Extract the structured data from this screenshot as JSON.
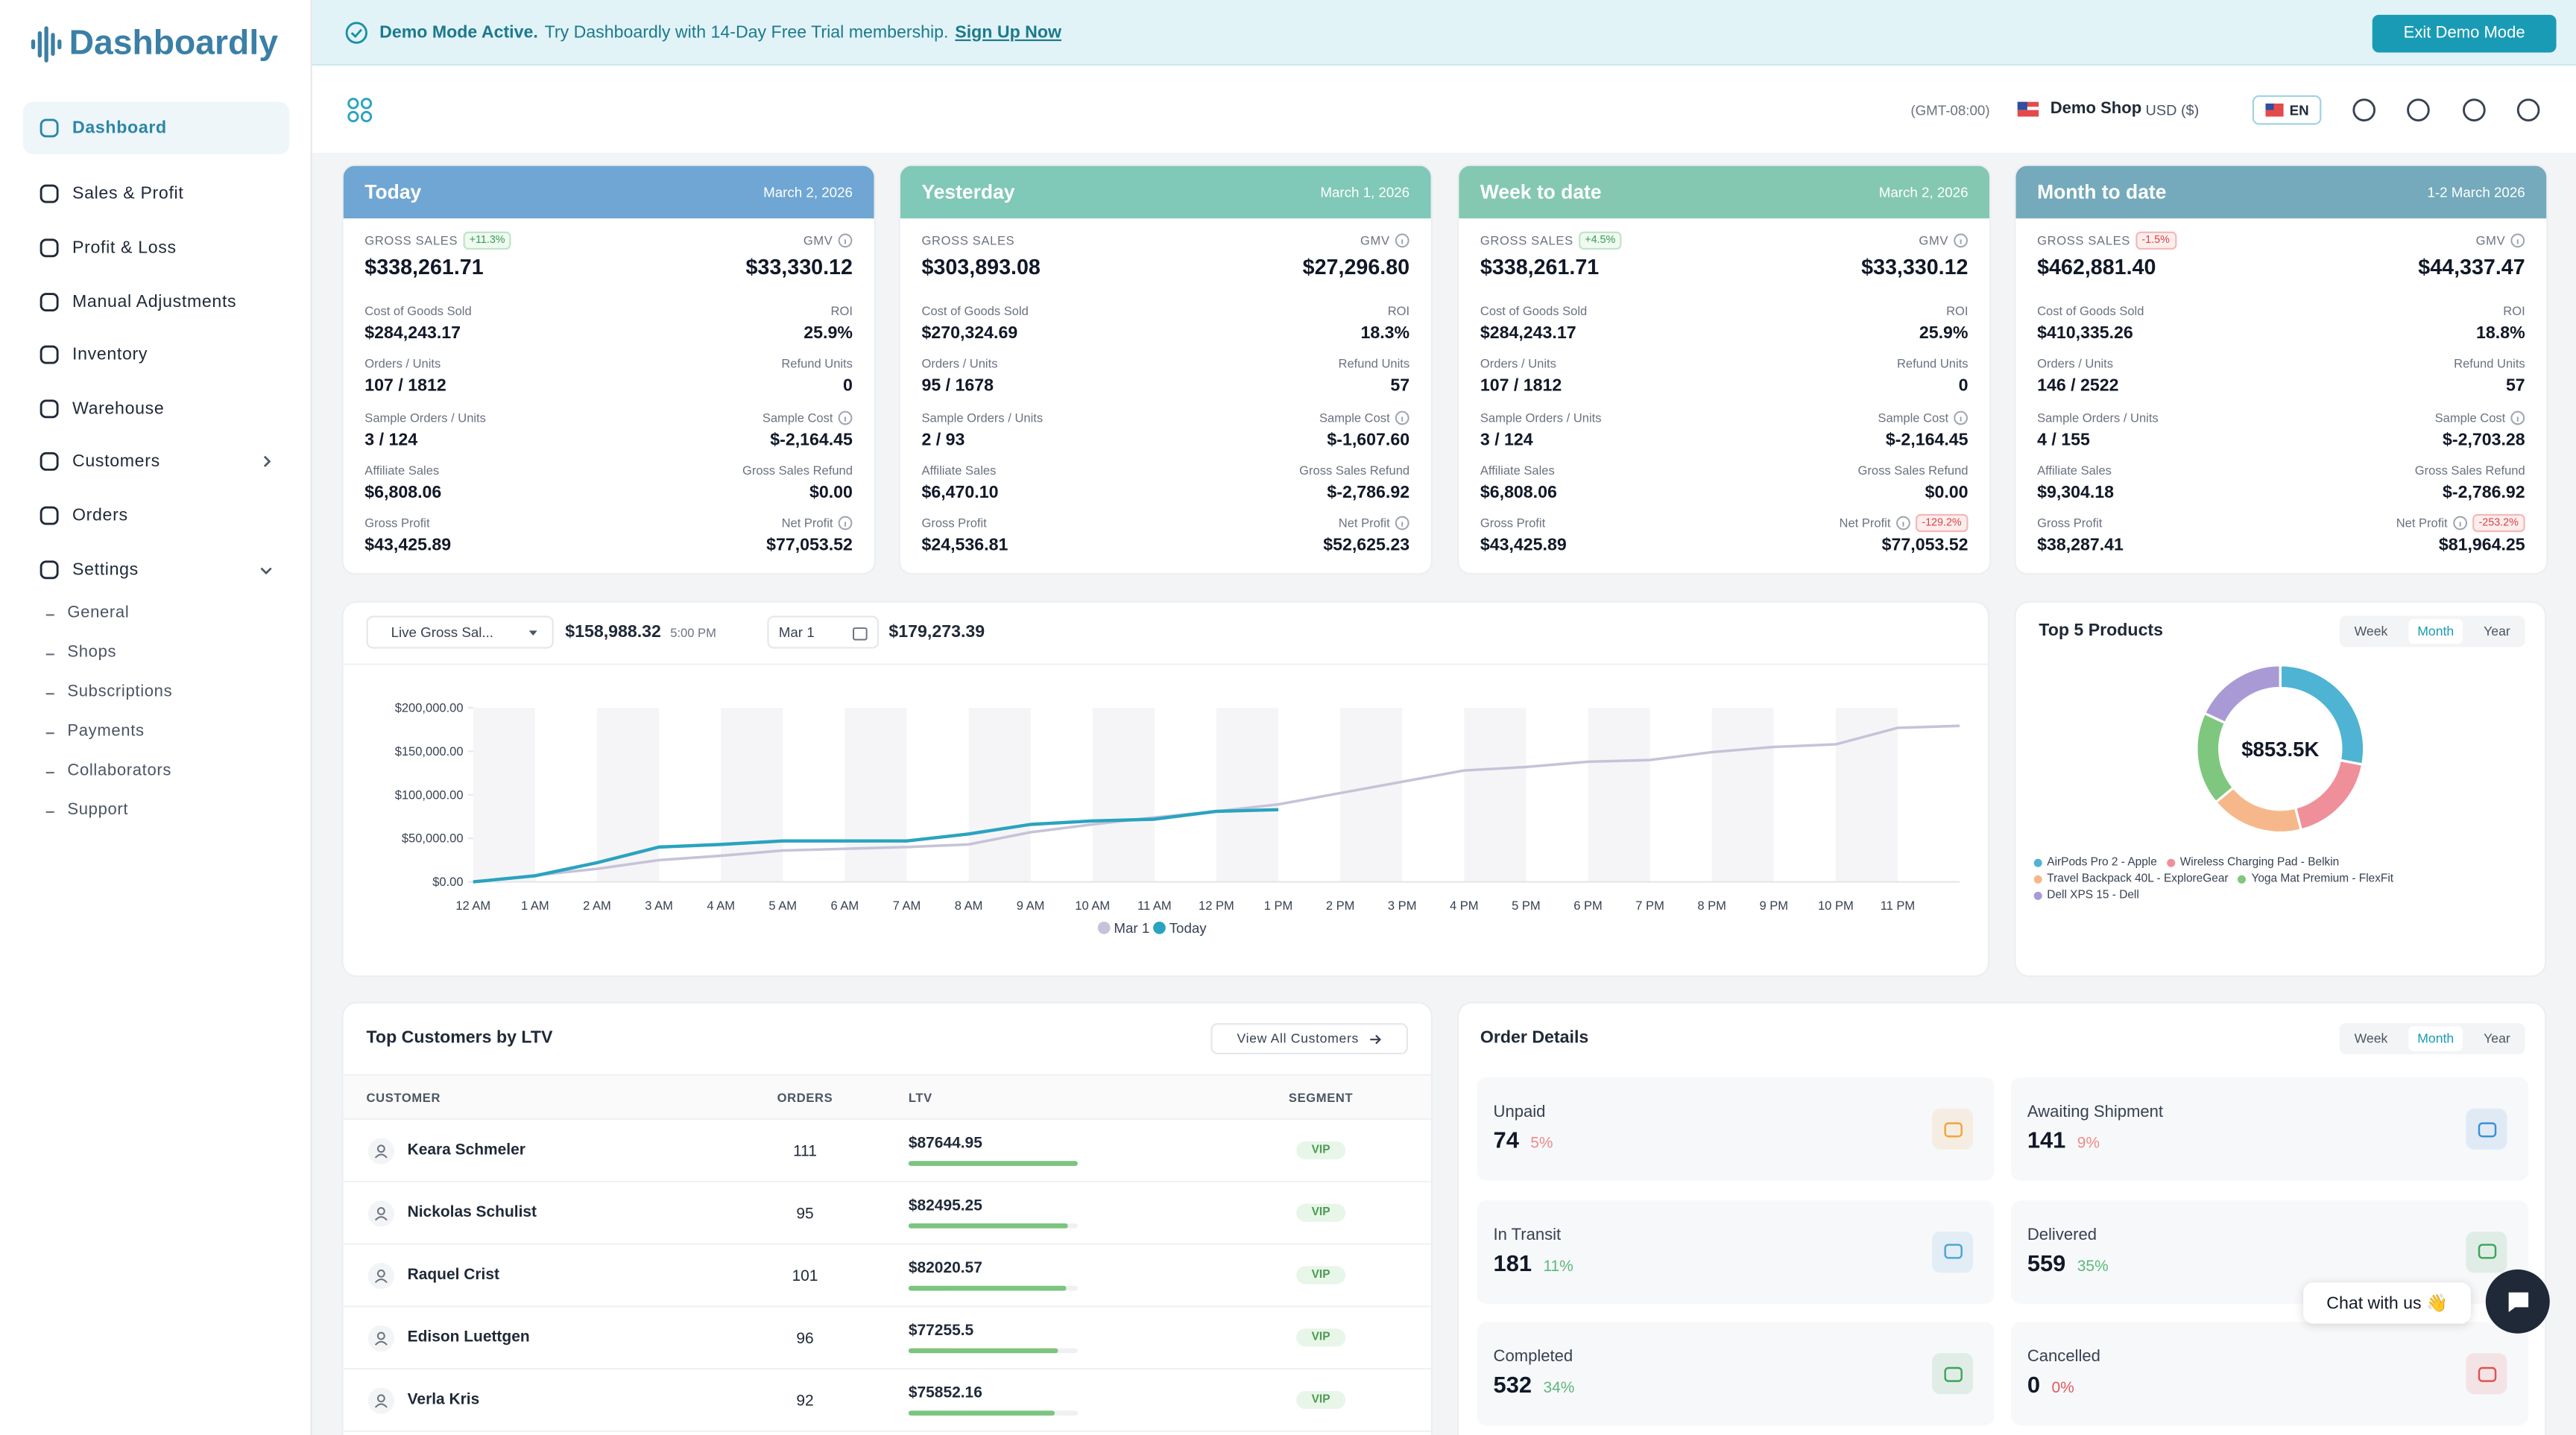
{
  "banner": {
    "status": "Demo Mode Active.",
    "message": "Try Dashboardly with 14-Day Free Trial membership.",
    "link": "Sign Up Now",
    "button": "Exit Demo Mode"
  },
  "sidebar": {
    "logo": "Dashboardly",
    "nav": [
      "Dashboard",
      "Sales & Profit",
      "Profit & Loss",
      "Manual Adjustments",
      "Inventory",
      "Warehouse",
      "Customers",
      "Orders",
      "Settings"
    ],
    "settings_sub": [
      "General",
      "Shops",
      "Subscriptions",
      "Payments",
      "Collaborators",
      "Support"
    ]
  },
  "header": {
    "timezone": "(GMT-08:00)",
    "shop": "Demo Shop",
    "currency": "USD ($)",
    "language": "EN"
  },
  "summary": {
    "labels_left": [
      "GROSS SALES",
      "Cost of Goods Sold",
      "Orders / Units",
      "Sample Orders / Units",
      "Affiliate Sales",
      "Gross Profit"
    ],
    "labels_right": [
      "GMV",
      "ROI",
      "Refund Units",
      "Sample Cost",
      "Gross Sales Refund",
      "Net Profit"
    ],
    "cards": [
      {
        "title": "Today",
        "date": "March 2, 2026",
        "color": "#6fa6d3",
        "gross_badge": "+11.3%",
        "left": [
          "$338,261.71",
          "$284,243.17",
          "107 / 1812",
          "3 / 124",
          "$6,808.06",
          "$43,425.89"
        ],
        "right": [
          "$33,330.12",
          "25.9%",
          "0",
          "$-2,164.45",
          "$0.00",
          "$77,053.52"
        ]
      },
      {
        "title": "Yesterday",
        "date": "March 1, 2026",
        "color": "#80c8b7",
        "left": [
          "$303,893.08",
          "$270,324.69",
          "95 / 1678",
          "2 / 93",
          "$6,470.10",
          "$24,536.81"
        ],
        "right": [
          "$27,296.80",
          "18.3%",
          "57",
          "$-1,607.60",
          "$-2,786.92",
          "$52,625.23"
        ]
      },
      {
        "title": "Week to date",
        "date": "March 2, 2026",
        "color": "#84c8b2",
        "gross_badge": "+4.5%",
        "net_badge": "-129.2%",
        "left": [
          "$338,261.71",
          "$284,243.17",
          "107 / 1812",
          "3 / 124",
          "$6,808.06",
          "$43,425.89"
        ],
        "right": [
          "$33,330.12",
          "25.9%",
          "0",
          "$-2,164.45",
          "$0.00",
          "$77,053.52"
        ]
      },
      {
        "title": "Month to date",
        "date": "1-2 March 2026",
        "color": "#74aabb",
        "gross_badge": "-1.5%",
        "net_badge": "-253.2%",
        "left": [
          "$462,881.40",
          "$410,335.26",
          "146 / 2522",
          "4 / 155",
          "$9,304.18",
          "$38,287.41"
        ],
        "right": [
          "$44,337.47",
          "18.8%",
          "57",
          "$-2,703.28",
          "$-2,786.92",
          "$81,964.25"
        ]
      }
    ]
  },
  "sales_toolbar": {
    "metric": "Live Gross Sal...",
    "current_value": "$158,988.32",
    "current_time": "5:00 PM",
    "compare_date": "Mar 1",
    "compare_value": "$179,273.39"
  },
  "period_options": [
    "Week",
    "Month",
    "Year"
  ],
  "chart_data": [
    {
      "type": "line",
      "categories": [
        "12 AM",
        "1 AM",
        "2 AM",
        "3 AM",
        "4 AM",
        "5 AM",
        "6 AM",
        "7 AM",
        "8 AM",
        "9 AM",
        "10 AM",
        "11 AM",
        "12 PM",
        "1 PM",
        "2 PM",
        "3 PM",
        "4 PM",
        "5 PM",
        "6 PM",
        "7 PM",
        "8 PM",
        "9 PM",
        "10 PM",
        "11 PM",
        null
      ],
      "ylim": [
        0,
        200000
      ],
      "yticks": [
        {
          "value": 0,
          "label": "$0.00"
        },
        {
          "value": 50000,
          "label": "$50,000.00"
        },
        {
          "value": 100000,
          "label": "$100,000.00"
        },
        {
          "value": 150000,
          "label": "$150,000.00"
        },
        {
          "value": 200000,
          "label": "$200,000.00"
        }
      ],
      "series": [
        {
          "name": "Mar 1",
          "color": "#c6c3d8",
          "values": [
            0,
            7500,
            15000,
            25000,
            30000,
            36000,
            38000,
            40000,
            43000,
            57000,
            66000,
            74000,
            81000,
            89000,
            102000,
            115000,
            128000,
            132000,
            138000,
            140000,
            149000,
            155000,
            158000,
            177000,
            179273
          ]
        },
        {
          "name": "Today",
          "color": "#2aa3bf",
          "values": [
            0,
            7000,
            22000,
            40000,
            43000,
            47000,
            47000,
            47000,
            55000,
            66000,
            70000,
            72000,
            81000,
            83000,
            null,
            null,
            null,
            null,
            null,
            null,
            null,
            null,
            null,
            null,
            null
          ]
        }
      ]
    },
    {
      "type": "pie",
      "title": "Top 5 Products",
      "center_label": "$853.5K",
      "categories": [
        "AirPods Pro 2 - Apple",
        "Wireless Charging Pad - Belkin",
        "Travel Backpack 40L - ExploreGear",
        "Yoga Mat Premium - FlexFit",
        "Dell XPS 15 - Dell"
      ],
      "values": [
        28,
        18,
        18,
        18,
        18
      ],
      "colors": [
        "#4fb3d3",
        "#ef8f99",
        "#f6b88a",
        "#7fc77f",
        "#a99ad6"
      ]
    }
  ],
  "customers": {
    "title": "Top Customers by LTV",
    "action": "View All Customers",
    "columns": [
      "CUSTOMER",
      "ORDERS",
      "LTV",
      "SEGMENT"
    ],
    "rows": [
      {
        "name": "Keara Schmeler",
        "orders": 111,
        "ltv": 87644.95,
        "ltv_label": "$87644.95",
        "segment": "VIP"
      },
      {
        "name": "Nickolas Schulist",
        "orders": 95,
        "ltv": 82495.25,
        "ltv_label": "$82495.25",
        "segment": "VIP"
      },
      {
        "name": "Raquel Crist",
        "orders": 101,
        "ltv": 82020.57,
        "ltv_label": "$82020.57",
        "segment": "VIP"
      },
      {
        "name": "Edison Luettgen",
        "orders": 96,
        "ltv": 77255.5,
        "ltv_label": "$77255.5",
        "segment": "VIP"
      },
      {
        "name": "Verla Kris",
        "orders": 92,
        "ltv": 75852.16,
        "ltv_label": "$75852.16",
        "segment": "VIP"
      }
    ]
  },
  "order_details": {
    "title": "Order Details",
    "statuses": [
      {
        "label": "Unpaid",
        "count": 74,
        "share": "5%",
        "share_color": "#ee8b8b",
        "icon_color": "#f0a53c"
      },
      {
        "label": "Awaiting Shipment",
        "count": 141,
        "share": "9%",
        "share_color": "#ee8b8b",
        "icon_color": "#3b8fd4"
      },
      {
        "label": "In Transit",
        "count": 181,
        "share": "11%",
        "share_color": "#5cb87a",
        "icon_color": "#4aa3d8"
      },
      {
        "label": "Delivered",
        "count": 559,
        "share": "35%",
        "share_color": "#5cb87a",
        "icon_color": "#3aa55b"
      },
      {
        "label": "Completed",
        "count": 532,
        "share": "34%",
        "share_color": "#5cb87a",
        "icon_color": "#3aa55b"
      },
      {
        "label": "Cancelled",
        "count": 0,
        "share": "0%",
        "share_color": "#e05a5a",
        "icon_color": "#e05252"
      }
    ]
  },
  "chat": {
    "label": "Chat with us 👋"
  }
}
